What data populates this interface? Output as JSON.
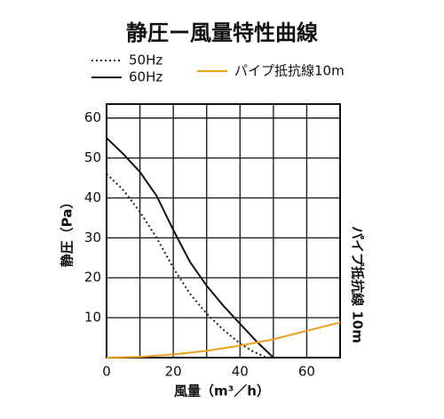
{
  "chart_data": {
    "type": "line",
    "title": "静圧ー風量特性曲線",
    "x_label": "風量（m³／h）",
    "y_label": "静圧（Pa）",
    "y2_label": "パイプ抵抗線 10m",
    "xlim": [
      0,
      70
    ],
    "xticks": [
      0,
      20,
      40,
      60
    ],
    "x_minor_ticks": [
      10,
      30,
      50
    ],
    "ylim": [
      0,
      63.5
    ],
    "yticks": [
      10,
      20,
      30,
      40,
      50,
      60
    ],
    "grid": true,
    "series": [
      {
        "name": "50Hz",
        "color": "#222222",
        "dash": "dotted",
        "x": [
          0,
          5,
          10,
          15,
          20,
          25,
          30,
          35,
          40,
          44,
          48
        ],
        "values": [
          46,
          42,
          36.5,
          30,
          22.5,
          16,
          11,
          7,
          3.5,
          1.5,
          0
        ]
      },
      {
        "name": "60Hz",
        "color": "#111111",
        "dash": "solid",
        "x": [
          0,
          5,
          10,
          15,
          20,
          25,
          30,
          35,
          40,
          45,
          50
        ],
        "values": [
          55,
          51,
          46.5,
          40.5,
          32,
          24,
          18,
          13,
          8.5,
          4,
          0
        ]
      },
      {
        "name": "パイプ抵抗線10m",
        "color": "#f0a020",
        "dash": "solid",
        "x": [
          0,
          10,
          20,
          30,
          40,
          50,
          60,
          70
        ],
        "values": [
          0,
          0.2,
          0.8,
          1.7,
          3.0,
          4.6,
          6.7,
          8.8
        ]
      }
    ]
  }
}
